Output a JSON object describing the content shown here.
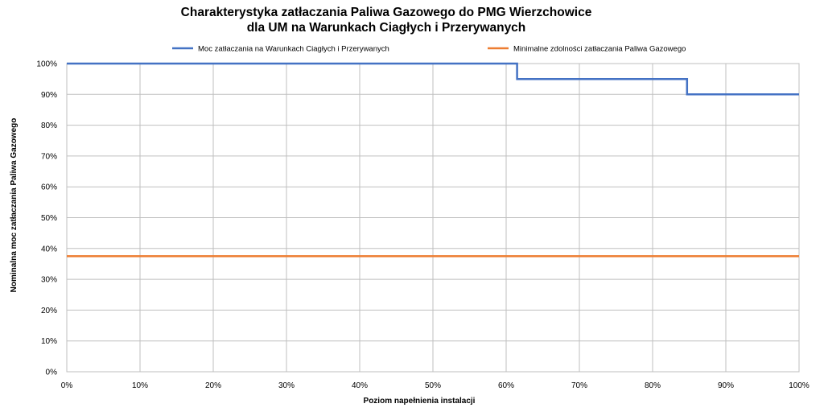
{
  "chart_data": {
    "type": "line",
    "title": "Charakterystyka zatłaczania Paliwa Gazowego do PMG Wierzchowice",
    "subtitle": "dla UM na Warunkach Ciagłych i Przerywanych",
    "xlabel": "Poziom napełnienia instalacji",
    "ylabel": "Nominalna moc zatłaczania Paliwa Gazowego",
    "xlim": [
      0,
      100
    ],
    "ylim": [
      0,
      100
    ],
    "x_ticks": [
      "0%",
      "10%",
      "20%",
      "30%",
      "40%",
      "50%",
      "60%",
      "70%",
      "80%",
      "90%",
      "100%"
    ],
    "y_ticks": [
      "0%",
      "10%",
      "20%",
      "30%",
      "40%",
      "50%",
      "60%",
      "70%",
      "80%",
      "90%",
      "100%"
    ],
    "grid": true,
    "legend_position": "top",
    "series": [
      {
        "name": "Moc zatłaczania na Warunkach Ciagłych i Przerywanych",
        "color": "#4472C4",
        "step": true,
        "x": [
          0,
          61.5,
          61.5,
          84.7,
          84.7,
          100
        ],
        "y": [
          100,
          100,
          95,
          95,
          90,
          90
        ]
      },
      {
        "name": "Minimalne zdolności zatłaczania Paliwa Gazowego",
        "color": "#ED7D31",
        "step": false,
        "x": [
          0,
          100
        ],
        "y": [
          37.5,
          37.5
        ]
      }
    ]
  }
}
